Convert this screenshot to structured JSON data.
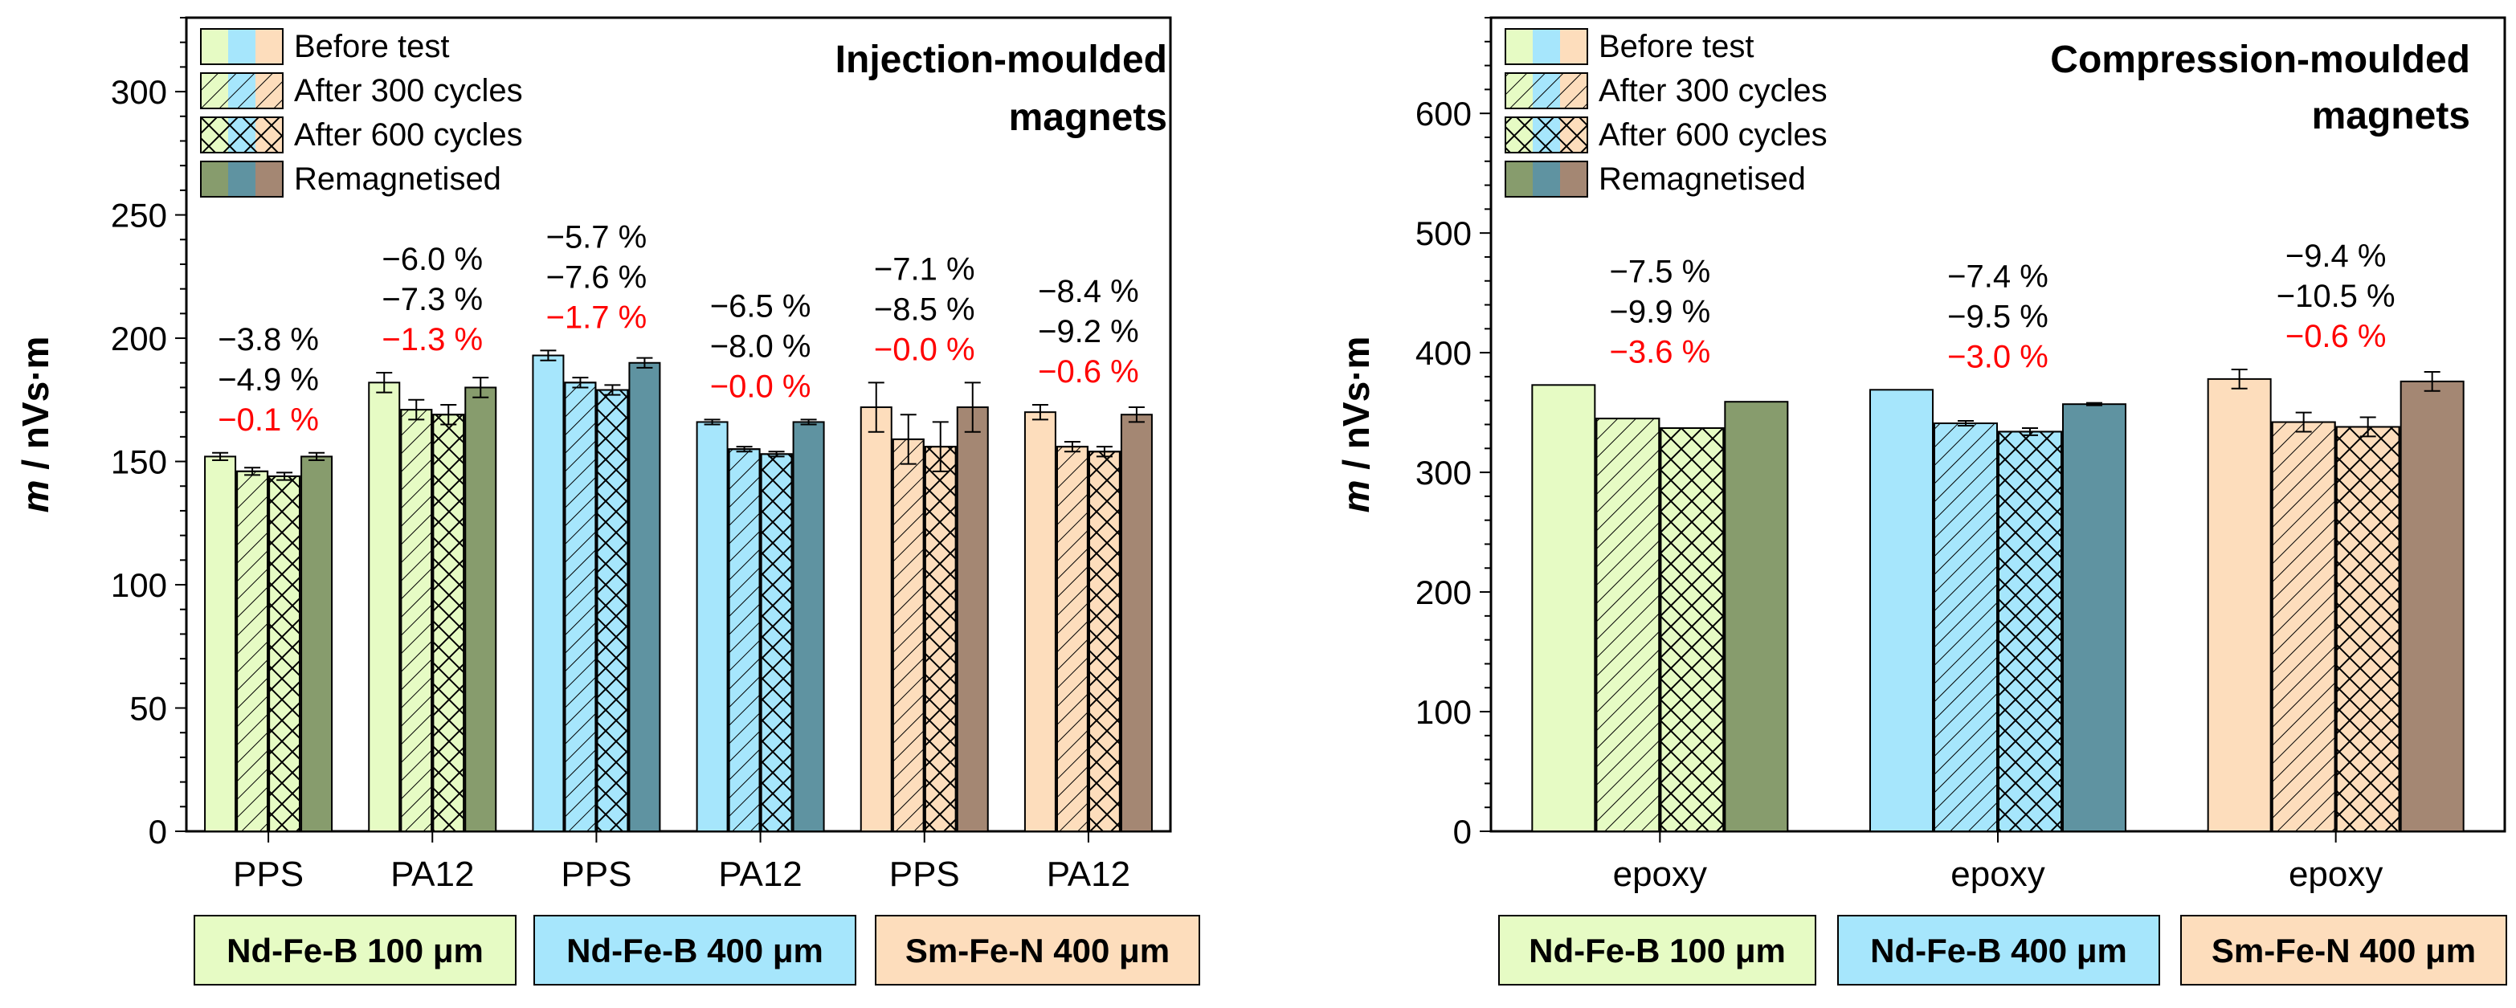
{
  "legend": {
    "entries": [
      "Before test",
      "After 300 cycles",
      "After 600 cycles",
      "Remagnetised"
    ]
  },
  "materials": [
    "Nd-Fe-B 100 μm",
    "Nd-Fe-B 400 μm",
    "Sm-Fe-N 400 μm"
  ],
  "colors": {
    "light": [
      "#e6fbc4",
      "#a6e6fc",
      "#fdddbc"
    ],
    "dark": [
      "#879c6d",
      "#5f93a1",
      "#a48773"
    ],
    "red": "#ff0000"
  },
  "chart_data": [
    {
      "type": "bar",
      "title": "Injection-moulded magnets",
      "title_lines": [
        "Injection-moulded",
        "magnets"
      ],
      "ylabel_italic": "m",
      "ylabel": " / nVs·m",
      "ylim": [
        0,
        330
      ],
      "yticks": [
        0,
        50,
        100,
        150,
        200,
        250,
        300
      ],
      "ytick_labels": [
        "0",
        "50",
        "100",
        "150",
        "200",
        "250",
        "300"
      ],
      "minor_step": 10,
      "categories": [
        "PPS",
        "PA12",
        "PPS",
        "PA12",
        "PPS",
        "PA12"
      ],
      "category_material": [
        0,
        0,
        1,
        1,
        2,
        2
      ],
      "series": [
        {
          "name": "Before test",
          "values": [
            152,
            182,
            193,
            166,
            172,
            170
          ],
          "errors": [
            1.5,
            4,
            2,
            1,
            10,
            3
          ]
        },
        {
          "name": "After 300 cycles",
          "values": [
            146,
            171,
            182,
            155,
            159,
            156
          ],
          "errors": [
            1.5,
            4,
            2,
            1,
            10,
            2
          ]
        },
        {
          "name": "After 600 cycles",
          "values": [
            144,
            169,
            179,
            153,
            156,
            154
          ],
          "errors": [
            1.5,
            4,
            2,
            1,
            10,
            2
          ]
        },
        {
          "name": "Remagnetised",
          "values": [
            152,
            180,
            190,
            166,
            172,
            169
          ],
          "errors": [
            1.5,
            4,
            2,
            1,
            10,
            3
          ]
        }
      ],
      "annotations": [
        [
          "−3.8 %",
          "−4.9 %",
          "−0.1 %"
        ],
        [
          "−6.0 %",
          "−7.3 %",
          "−1.3 %"
        ],
        [
          "−5.7 %",
          "−7.6 %",
          "−1.7 %"
        ],
        [
          "−6.5 %",
          "−8.0 %",
          "−0.0 %"
        ],
        [
          "−7.1 %",
          "−8.5 %",
          "−0.0 %"
        ],
        [
          "−8.4 %",
          "−9.2 %",
          "−0.6 %"
        ]
      ],
      "materials": [
        "Nd-Fe-B 100 μm",
        "Nd-Fe-B 400 μm",
        "Sm-Fe-N 400 μm"
      ]
    },
    {
      "type": "bar",
      "title": "Compression-moulded magnets",
      "title_lines": [
        "Compression-moulded",
        "magnets"
      ],
      "ylabel_italic": "m",
      "ylabel": " / nVs·m",
      "ylim": [
        0,
        680
      ],
      "yticks": [
        0,
        100,
        200,
        300,
        400,
        500,
        600
      ],
      "ytick_labels": [
        "0",
        "100",
        "200",
        "300",
        "400",
        "500",
        "600"
      ],
      "minor_step": 20,
      "categories": [
        "epoxy",
        "epoxy",
        "epoxy"
      ],
      "category_material": [
        0,
        1,
        2
      ],
      "series": [
        {
          "name": "Before test",
          "values": [
            373,
            369,
            378
          ],
          "errors": [
            0,
            0,
            8
          ]
        },
        {
          "name": "After 300 cycles",
          "values": [
            345,
            341,
            342
          ],
          "errors": [
            0,
            2,
            8
          ]
        },
        {
          "name": "After 600 cycles",
          "values": [
            337,
            334,
            338
          ],
          "errors": [
            0,
            3,
            8
          ]
        },
        {
          "name": "Remagnetised",
          "values": [
            359,
            357,
            376
          ],
          "errors": [
            0,
            1,
            8
          ]
        }
      ],
      "annotations": [
        [
          "−7.5 %",
          "−9.9 %",
          "−3.6 %"
        ],
        [
          "−7.4 %",
          "−9.5 %",
          "−3.0 %"
        ],
        [
          "−9.4 %",
          "−10.5 %",
          "−0.6 %"
        ]
      ],
      "materials": [
        "Nd-Fe-B 100 μm",
        "Nd-Fe-B 400 μm",
        "Sm-Fe-N 400 μm"
      ]
    }
  ]
}
